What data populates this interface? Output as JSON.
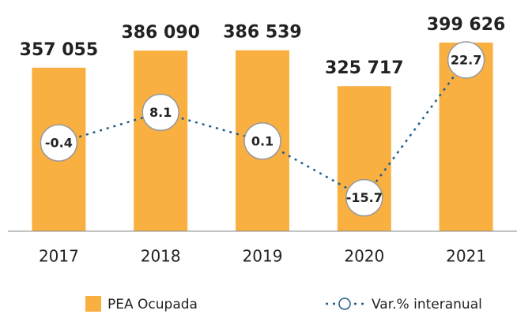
{
  "chart_data": {
    "type": "bar",
    "categories": [
      "2017",
      "2018",
      "2019",
      "2020",
      "2021"
    ],
    "series": [
      {
        "name": "PEA Ocupada",
        "color": "#f9b041",
        "values": [
          357055,
          386090,
          386539,
          325717,
          399626
        ],
        "value_labels": [
          "357 055",
          "386 090",
          "386 539",
          "325 717",
          "399 626"
        ]
      },
      {
        "name": "Var.% interanual",
        "color": "#1f5f8b",
        "type": "line",
        "axis": "y2",
        "values": [
          -0.4,
          8.1,
          0.1,
          -15.7,
          22.7
        ]
      }
    ],
    "ylim": [
      80000,
      445000
    ],
    "y2lim": [
      -25,
      35
    ],
    "legend": "bottom"
  }
}
